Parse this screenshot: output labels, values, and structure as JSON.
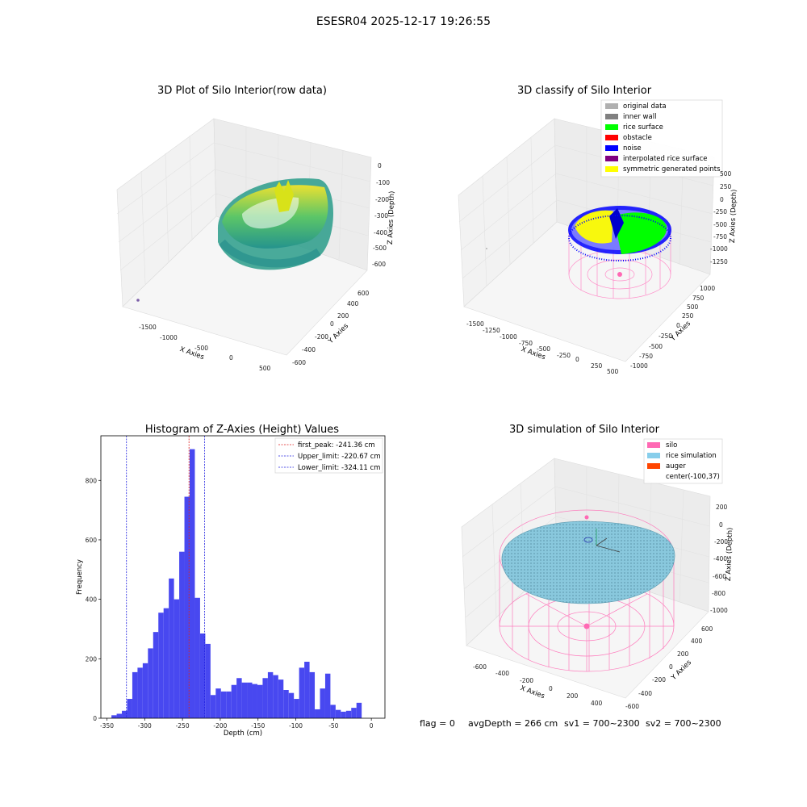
{
  "figure": {
    "suptitle": "ESESR04 2025-12-17 19:26:55",
    "bottom_text": {
      "flag": "flag = 0",
      "avgDepth": "avgDepth = 266 cm",
      "sv1": "sv1 = 700~2300",
      "sv2": "sv2 = 700~2300"
    }
  },
  "chart_data": [
    {
      "type": "scatter",
      "projection": "3d",
      "title": "3D Plot of Silo Interior(row data)",
      "xlabel": "X Axies",
      "ylabel": "Y Axies",
      "zlabel": "Z Axies (Depth)",
      "x_ticks": [
        "-1500",
        "-1000",
        "-500",
        "0",
        "500"
      ],
      "y_ticks": [
        "-600",
        "-400",
        "-200",
        "0",
        "200",
        "400",
        "600"
      ],
      "z_ticks": [
        "0",
        "-100",
        "-200",
        "-300",
        "-400",
        "-500",
        "-600"
      ],
      "colormap": "viridis",
      "description_points": "ring-shaped cloud of ~x:-600..500, y:-600..600, z:-650..-100 plus one outlier near x=-1600"
    },
    {
      "type": "scatter",
      "projection": "3d",
      "title": "3D classify of Silo Interior",
      "xlabel": "X Axies",
      "ylabel": "Y Axies",
      "zlabel": "Z Axies (Depth)",
      "x_ticks": [
        "-1500",
        "-1250",
        "-1000",
        "-750",
        "-500",
        "-250",
        "0",
        "250",
        "500"
      ],
      "y_ticks": [
        "-1000",
        "-750",
        "-500",
        "-250",
        "0",
        "250",
        "500",
        "750",
        "1000"
      ],
      "z_ticks": [
        "500",
        "250",
        "0",
        "-250",
        "-500",
        "-750",
        "-1000",
        "-1250"
      ],
      "legend": [
        {
          "label": "original data",
          "color": "#b0b0b0"
        },
        {
          "label": "inner wall",
          "color": "#808080"
        },
        {
          "label": "rice surface",
          "color": "#00ff00"
        },
        {
          "label": "obstacle",
          "color": "#ff0000"
        },
        {
          "label": "noise",
          "color": "#0000ff"
        },
        {
          "label": "interpolated rice surface",
          "color": "#800080"
        },
        {
          "label": "symmetric generated points",
          "color": "#ffff00"
        }
      ]
    },
    {
      "type": "bar",
      "title": "Histogram of Z-Axies (Height) Values",
      "xlabel": "Depth (cm)",
      "ylabel": "Frequency",
      "xlim": [
        -358,
        18
      ],
      "ylim": [
        0,
        950
      ],
      "x_ticks": [
        -350,
        -300,
        -250,
        -200,
        -150,
        -100,
        -50,
        0
      ],
      "y_ticks": [
        0,
        200,
        400,
        600,
        800
      ],
      "bin_start": -344,
      "bin_width": 6.9,
      "values": [
        10,
        15,
        25,
        65,
        155,
        170,
        185,
        235,
        290,
        355,
        370,
        470,
        400,
        560,
        745,
        905,
        405,
        285,
        250,
        78,
        100,
        90,
        90,
        112,
        135,
        120,
        120,
        115,
        112,
        135,
        155,
        145,
        130,
        95,
        85,
        65,
        170,
        190,
        155,
        30,
        100,
        150,
        45,
        28,
        22,
        25,
        35,
        52
      ],
      "bar_color": "#4848f0",
      "vlines": [
        {
          "label": "first_peak: -241.36 cm",
          "x": -241.36,
          "color": "#e02020"
        },
        {
          "label": "Upper_limit: -220.67 cm",
          "x": -220.67,
          "color": "#2020e0"
        },
        {
          "label": "Lower_limit: -324.11 cm",
          "x": -324.11,
          "color": "#2020e0"
        }
      ]
    },
    {
      "type": "scatter",
      "projection": "3d",
      "title": "3D simulation of Silo Interior",
      "xlabel": "X Axies",
      "ylabel": "Y Axies",
      "zlabel": "Z Axies (Depth)",
      "x_ticks": [
        "-600",
        "-400",
        "-200",
        "0",
        "200",
        "400"
      ],
      "y_ticks": [
        "-600",
        "-400",
        "-200",
        "0",
        "200",
        "400",
        "600"
      ],
      "z_ticks": [
        "200",
        "0",
        "-200",
        "-400",
        "-600",
        "-800",
        "-1000"
      ],
      "legend": [
        {
          "label": "silo",
          "color": "#ff69b4"
        },
        {
          "label": "rice simulation",
          "color": "#87ceeb"
        },
        {
          "label": "auger",
          "color": "#ff4500"
        },
        {
          "label": "center(-100,37)",
          "color": ""
        }
      ]
    }
  ]
}
